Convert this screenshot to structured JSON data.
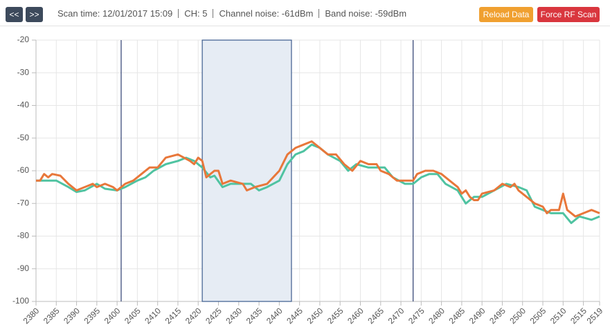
{
  "toolbar": {
    "buttons": [
      "<<",
      ">>"
    ],
    "info": [
      "Scan time: 12/01/2017 15:09",
      "CH: 5",
      "Channel noise: -61dBm",
      "Band noise: -59dBm"
    ],
    "actions": [
      "Reload Data",
      "Force RF Scan"
    ]
  },
  "chart_data": {
    "type": "line",
    "xlim": [
      2380,
      2519
    ],
    "xticks": [
      2380,
      2385,
      2390,
      2395,
      2400,
      2405,
      2410,
      2415,
      2420,
      2425,
      2430,
      2435,
      2440,
      2445,
      2450,
      2455,
      2460,
      2465,
      2470,
      2475,
      2480,
      2485,
      2490,
      2495,
      2500,
      2505,
      2510,
      2515,
      2519
    ],
    "ylim": [
      -100,
      -20
    ],
    "yticks": [
      -20,
      -30,
      -40,
      -50,
      -60,
      -70,
      -80,
      -90,
      -100
    ],
    "grid": true,
    "markers": [
      2401,
      2473
    ],
    "highlight": [
      2421,
      2443
    ],
    "series": [
      {
        "color": "#4fc3a1",
        "x": [
          2380,
          2385,
          2388,
          2390,
          2392,
          2395,
          2397,
          2400,
          2402,
          2405,
          2407,
          2409,
          2412,
          2415,
          2417,
          2419,
          2421,
          2423,
          2424,
          2426,
          2428,
          2433,
          2435,
          2437,
          2440,
          2442,
          2444,
          2446,
          2448,
          2450,
          2452,
          2455,
          2457,
          2459,
          2462,
          2466,
          2468,
          2471,
          2473,
          2475,
          2477,
          2479,
          2481,
          2484,
          2486,
          2488,
          2490,
          2493,
          2496,
          2499,
          2501,
          2503,
          2505,
          2507,
          2510,
          2512,
          2514,
          2517,
          2519
        ],
        "values": [
          -63,
          -63,
          -65,
          -66.5,
          -66,
          -64,
          -65.5,
          -66,
          -65,
          -63,
          -62,
          -60,
          -58,
          -57,
          -56,
          -57,
          -59,
          -62,
          -61.5,
          -65,
          -64,
          -64,
          -66,
          -65,
          -63,
          -58,
          -55,
          -54,
          -52,
          -53,
          -55,
          -57,
          -60,
          -58,
          -59,
          -59,
          -62,
          -64,
          -64,
          -62,
          -61,
          -61,
          -64,
          -66,
          -70,
          -68,
          -68,
          -66,
          -64,
          -65,
          -66,
          -71,
          -72,
          -73,
          -73,
          -76,
          -74,
          -75,
          -74
        ]
      },
      {
        "color": "#e8773a",
        "x": [
          2380,
          2381,
          2382,
          2383,
          2384,
          2386,
          2388,
          2390,
          2392,
          2394,
          2395,
          2397,
          2399,
          2400,
          2402,
          2404,
          2406,
          2408,
          2410,
          2412,
          2415,
          2418,
          2419,
          2420,
          2421,
          2422,
          2424,
          2425,
          2426,
          2428,
          2431,
          2432,
          2434,
          2437,
          2440,
          2442,
          2444,
          2446,
          2448,
          2450,
          2452,
          2454,
          2456,
          2458,
          2460,
          2462,
          2464,
          2465,
          2467,
          2469,
          2473,
          2474,
          2476,
          2478,
          2480,
          2482,
          2484,
          2485,
          2486,
          2487,
          2488,
          2489,
          2490,
          2493,
          2495,
          2497,
          2498,
          2499,
          2501,
          2503,
          2505,
          2506,
          2507,
          2509,
          2510,
          2511,
          2513,
          2515,
          2517,
          2519
        ],
        "values": [
          -63,
          -63,
          -61,
          -62,
          -61,
          -61.5,
          -64,
          -66,
          -65,
          -64,
          -65,
          -64,
          -65,
          -66,
          -64,
          -63,
          -61,
          -59,
          -59,
          -56,
          -55,
          -57,
          -58,
          -56,
          -57,
          -62,
          -60,
          -60,
          -64,
          -63,
          -64,
          -66,
          -65,
          -64,
          -60,
          -55,
          -53,
          -52,
          -51,
          -53,
          -55,
          -55,
          -58,
          -60,
          -57,
          -58,
          -58,
          -60,
          -61,
          -63,
          -63,
          -61,
          -60,
          -60,
          -61,
          -63,
          -65,
          -67,
          -66,
          -68,
          -69,
          -69,
          -67,
          -66,
          -64,
          -65,
          -64,
          -66,
          -68,
          -70,
          -71,
          -73,
          -72,
          -72,
          -67,
          -72,
          -74,
          -73,
          -72,
          -73
        ]
      }
    ]
  }
}
